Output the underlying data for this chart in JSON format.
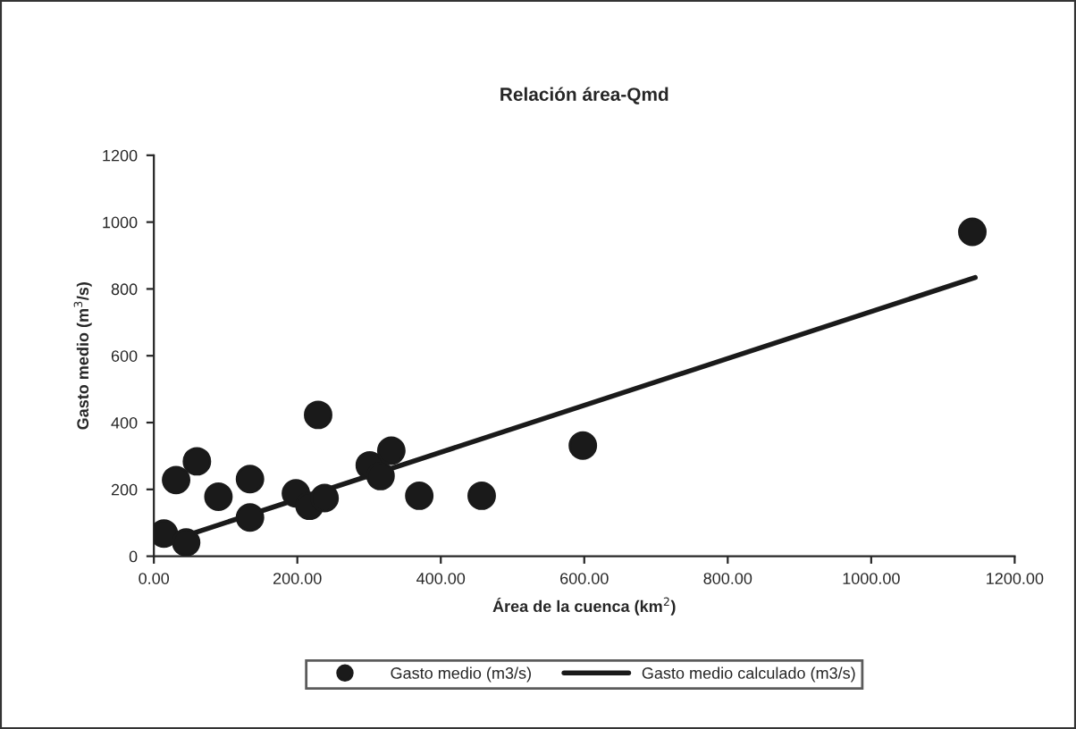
{
  "chart_data": {
    "type": "scatter",
    "title": "Relación área-Qmd",
    "xlabel": "Área de la cuenca (km$^{2}$)",
    "ylabel": "Gasto medio (m$^{3}$/s)",
    "xlim": [
      0,
      1200
    ],
    "xticks": [
      {
        "value": 0,
        "label": "0.00"
      },
      {
        "value": 200,
        "label": "200.00"
      },
      {
        "value": 400,
        "label": "400.00"
      },
      {
        "value": 600,
        "label": "600.00"
      },
      {
        "value": 800,
        "label": "800.00"
      },
      {
        "value": 1000,
        "label": "1000.00"
      },
      {
        "value": 1200,
        "label": "1200.00"
      }
    ],
    "ylim": [
      0,
      1200
    ],
    "yticks": [
      0,
      200,
      400,
      600,
      800,
      1000,
      1200
    ],
    "grid": false,
    "legend": "bottom",
    "series": [
      {
        "name": "Gasto medio (m3/s)",
        "marker": "circle",
        "color": "#1a1a1a",
        "x": [
          14,
          31,
          45,
          60,
          90,
          134,
          134,
          198,
          217,
          238,
          229,
          301,
          316,
          331,
          370,
          457,
          598,
          1141
        ],
        "values": [
          68,
          228,
          41,
          284,
          178,
          231,
          116,
          188,
          151,
          174,
          423,
          272,
          240,
          316,
          181,
          181,
          331,
          971
        ]
      },
      {
        "name": "Gasto medio calculado (m3/s)",
        "type": "line",
        "color": "#1a1a1a",
        "x": [
          35,
          1145
        ],
        "values": [
          55,
          834
        ]
      }
    ]
  }
}
